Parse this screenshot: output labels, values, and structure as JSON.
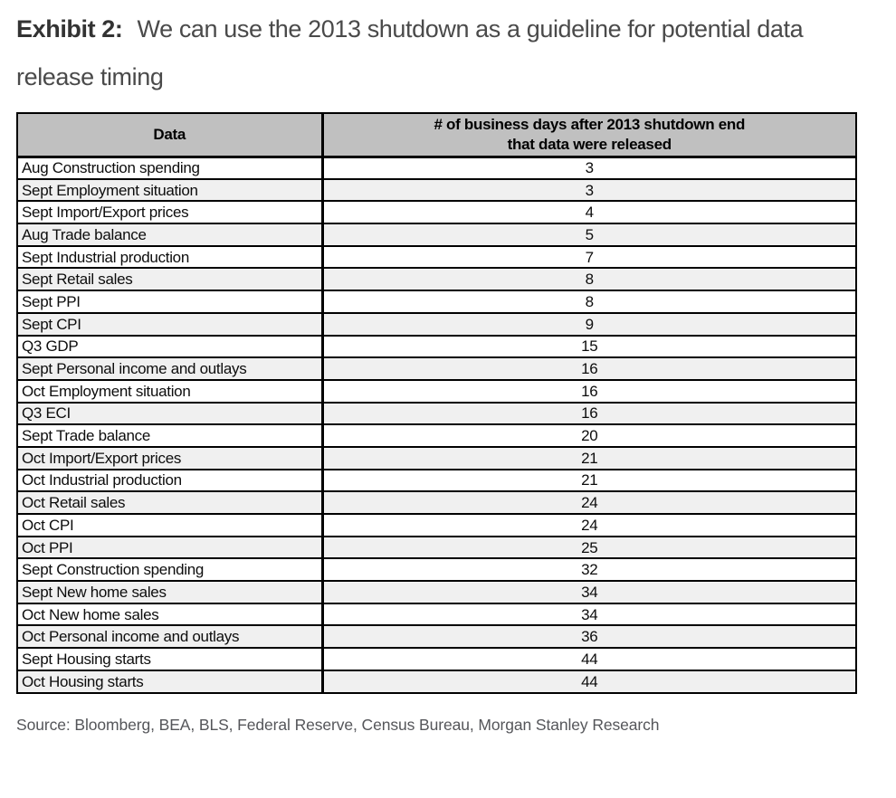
{
  "page": {
    "title_label": "Exhibit 2:",
    "title_text": "We can use the 2013 shutdown as a guideline for potential data release timing",
    "source": "Source: Bloomberg, BEA, BLS, Federal Reserve, Census Bureau, Morgan Stanley Research"
  },
  "table": {
    "header": {
      "col_data": "Data",
      "col_days_line1": "# of business days after 2013 shutdown end",
      "col_days_line2": "that data were released"
    },
    "rows": [
      {
        "data": "Aug Construction spending",
        "days": 3
      },
      {
        "data": "Sept Employment situation",
        "days": 3
      },
      {
        "data": "Sept Import/Export prices",
        "days": 4
      },
      {
        "data": "Aug Trade balance",
        "days": 5
      },
      {
        "data": "Sept Industrial production",
        "days": 7
      },
      {
        "data": "Sept Retail sales",
        "days": 8
      },
      {
        "data": "Sept PPI",
        "days": 8
      },
      {
        "data": "Sept CPI",
        "days": 9
      },
      {
        "data": "Q3 GDP",
        "days": 15
      },
      {
        "data": "Sept Personal income and outlays",
        "days": 16
      },
      {
        "data": "Oct Employment situation",
        "days": 16
      },
      {
        "data": "Q3 ECI",
        "days": 16
      },
      {
        "data": "Sept Trade balance",
        "days": 20
      },
      {
        "data": "Oct Import/Export prices",
        "days": 21
      },
      {
        "data": "Oct Industrial production",
        "days": 21
      },
      {
        "data": "Oct Retail sales",
        "days": 24
      },
      {
        "data": "Oct CPI",
        "days": 24
      },
      {
        "data": "Oct PPI",
        "days": 25
      },
      {
        "data": "Sept Construction spending",
        "days": 32
      },
      {
        "data": "Sept New home sales",
        "days": 34
      },
      {
        "data": "Oct New home sales",
        "days": 34
      },
      {
        "data": "Oct Personal income and outlays",
        "days": 36
      },
      {
        "data": "Sept Housing starts",
        "days": 44
      },
      {
        "data": "Oct Housing starts",
        "days": 44
      }
    ]
  },
  "colors": {
    "header_bg": "#c0c0c0",
    "row_alt_bg": "#f0f0f0",
    "border_color": "#000000",
    "title_color": "#4a4a4a",
    "title_label_color": "#333333",
    "source_color": "#55565a"
  }
}
